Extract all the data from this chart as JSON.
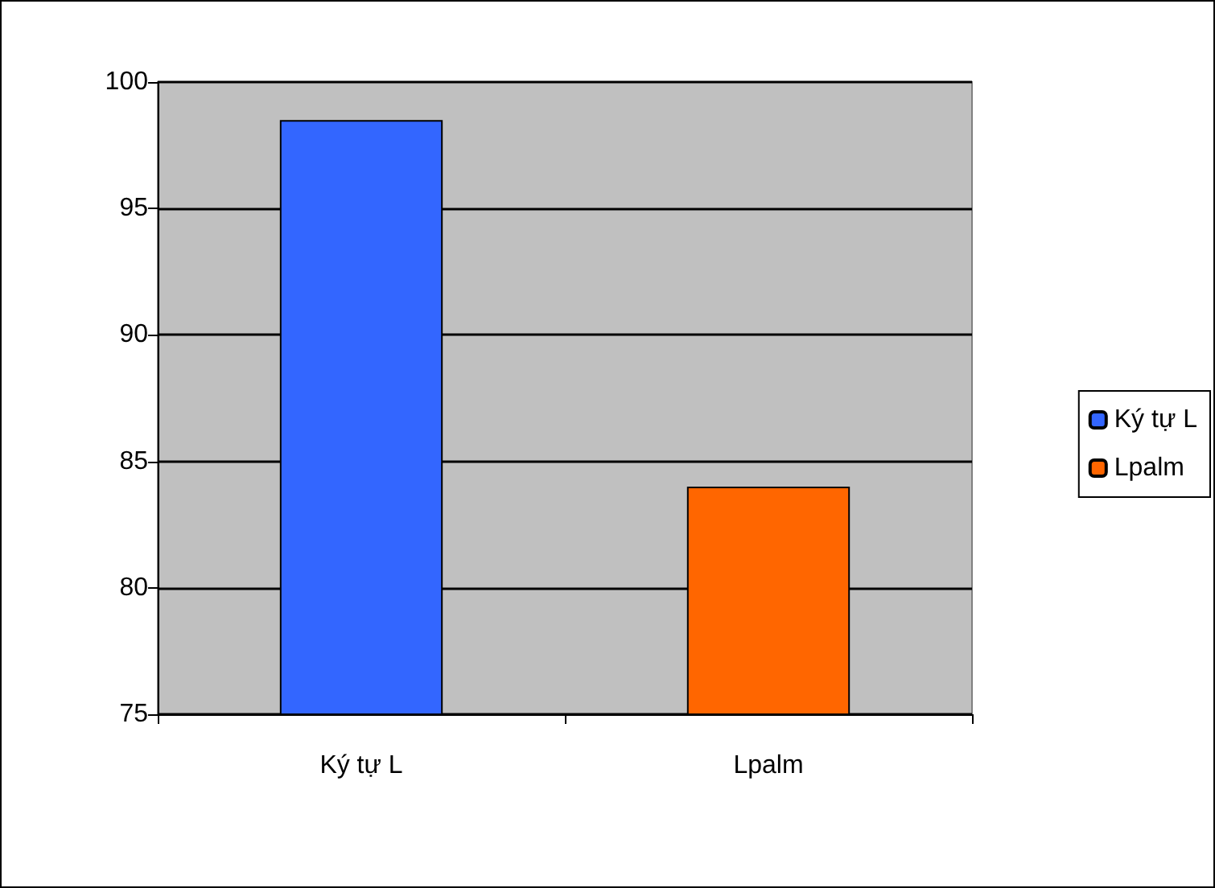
{
  "chart_data": {
    "type": "bar",
    "categories": [
      "Ký tự L",
      "Lpalm"
    ],
    "series": [
      {
        "name": "Ký tự L",
        "color": "#3366ff",
        "values": [
          98.5,
          null
        ]
      },
      {
        "name": "Lpalm",
        "color": "#ff6600",
        "values": [
          null,
          84.0
        ]
      }
    ],
    "ylim": [
      75,
      100
    ],
    "yticks": [
      75,
      80,
      85,
      90,
      95,
      100
    ],
    "grid": "y",
    "legend": "right"
  }
}
